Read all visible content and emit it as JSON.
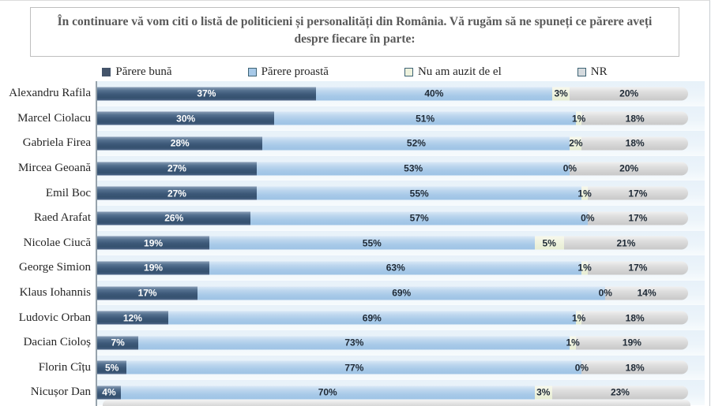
{
  "title": {
    "text": "În continuare vă vom citi o listă de politicieni și personalități din România. Vă rugăm să ne spuneți ce părere aveți despre fiecare în parte:"
  },
  "legend": [
    {
      "label": "Părere bună",
      "fill": "#44546a",
      "border": "#44546a"
    },
    {
      "label": "Părere proastă",
      "fill": "#a7c9e8",
      "border": "#3d6374"
    },
    {
      "label": "Nu am auzit de el",
      "fill": "#eef2dd",
      "border": "#3d6374"
    },
    {
      "label": "NR",
      "fill": "#d5dade",
      "border": "#3d6374"
    }
  ],
  "chart_data": {
    "type": "bar",
    "orientation": "horizontal",
    "stacked": true,
    "unit": "%",
    "xlim": [
      0,
      100
    ],
    "legend_position": "top",
    "value_labels": true,
    "categories": [
      "Alexandru Rafila",
      "Marcel Ciolacu",
      "Gabriela Firea",
      "Mircea Geoană",
      "Emil Boc",
      "Raed Arafat",
      "Nicolae Ciucă",
      "George Simion",
      "Klaus Iohannis",
      "Ludovic Orban",
      "Dacian Cioloș",
      "Florin Cîțu",
      "Nicușor Dan"
    ],
    "series": [
      {
        "name": "Părere bună",
        "color": "#3c5878",
        "values": [
          37,
          30,
          28,
          27,
          27,
          26,
          19,
          19,
          17,
          12,
          7,
          5,
          4
        ]
      },
      {
        "name": "Părere proastă",
        "color": "#a7c9e8",
        "values": [
          40,
          51,
          52,
          53,
          55,
          57,
          55,
          63,
          69,
          69,
          73,
          77,
          70
        ]
      },
      {
        "name": "Nu am auzit de el",
        "color": "#eef2dd",
        "values": [
          3,
          1,
          2,
          0,
          1,
          0,
          5,
          1,
          0,
          1,
          1,
          0,
          3
        ]
      },
      {
        "name": "NR",
        "color": "#d0d0d0",
        "values": [
          20,
          18,
          18,
          20,
          17,
          17,
          21,
          17,
          14,
          18,
          19,
          18,
          23
        ]
      }
    ]
  }
}
